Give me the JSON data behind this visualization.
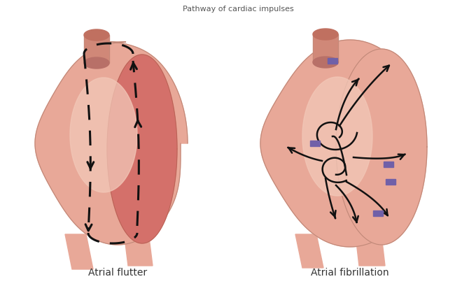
{
  "bg_color": "#ffffff",
  "title_top": "Pathway of cardiac impulses",
  "label_flutter": "Atrial flutter",
  "label_fibrillation": "Atrial fibrillation",
  "label_fontsize": 10,
  "title_fontsize": 8,
  "outer_fill": "#e8a898",
  "inner_fill": "#d4706a",
  "cavity_fill": "#e09080",
  "highlight_fill": "#f2c8b8",
  "arrow_color": "#111111",
  "purple_color": "#7060a8",
  "outline_color": "#c08878",
  "tube_fill": "#d08878",
  "white": "#ffffff"
}
